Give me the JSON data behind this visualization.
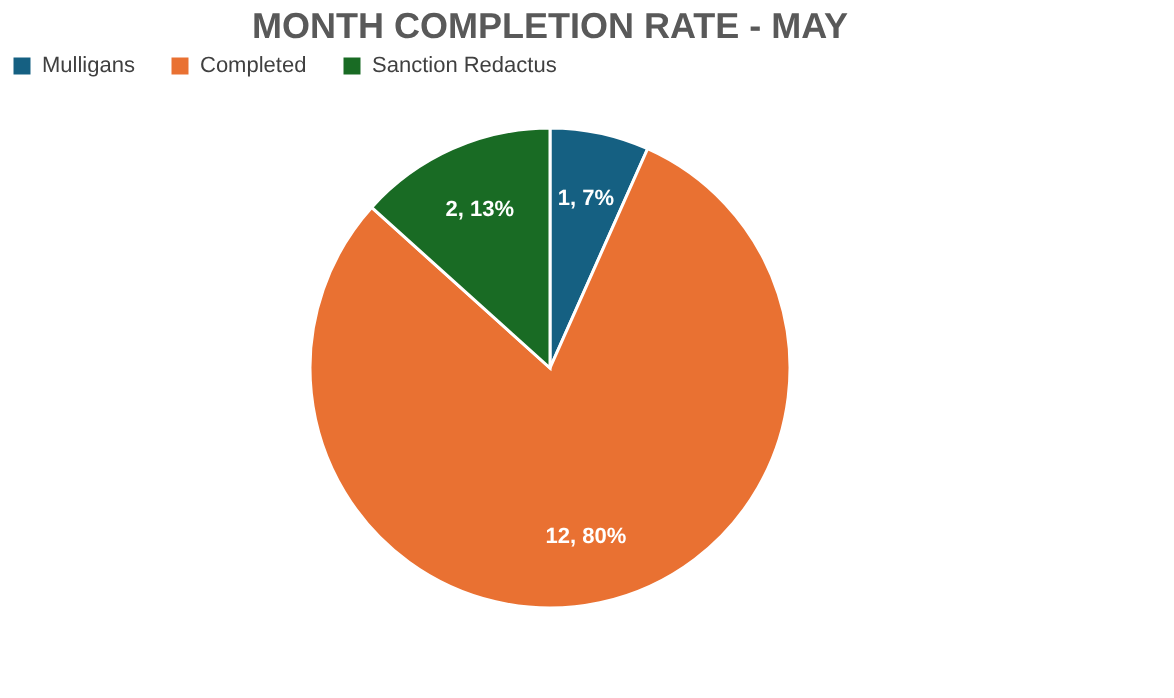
{
  "chart_data": {
    "type": "pie",
    "title": "MONTH COMPLETION RATE - MAY",
    "categories": [
      "Mulligans",
      "Completed",
      "Sanction Redactus"
    ],
    "values": [
      1,
      12,
      2
    ],
    "colors": [
      "#156082",
      "#e97132",
      "#196b24"
    ],
    "value_labels": [
      "1, 7%",
      "12, 80%",
      "2, 13%"
    ],
    "legend": "top"
  }
}
